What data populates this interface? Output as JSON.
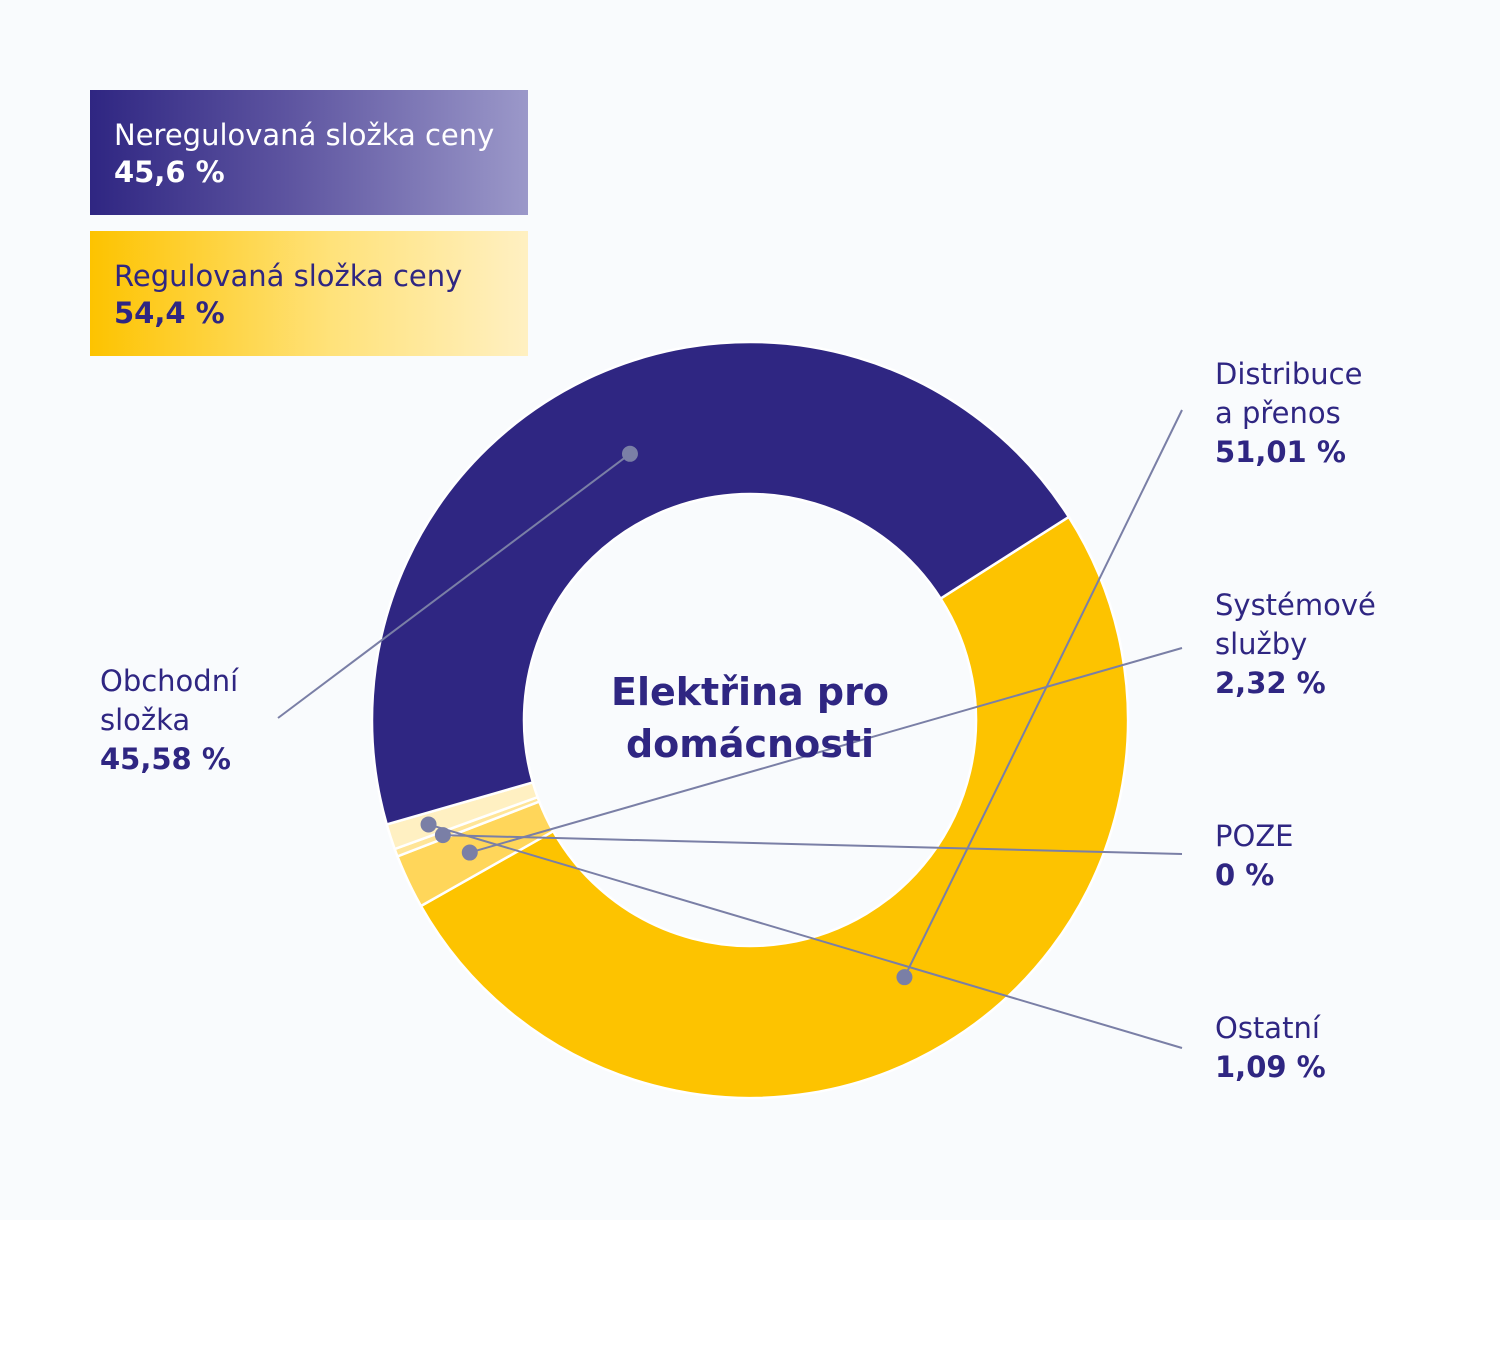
{
  "legend": {
    "unregulated": {
      "label": "Neregulovaná složka ceny",
      "value": "45,6 %",
      "color": "#2f2682"
    },
    "regulated": {
      "label": "Regulovaná složka ceny",
      "value": "54,4 %",
      "color": "#fdc300"
    }
  },
  "center_title": "Elektřina pro domácnosti",
  "callouts": {
    "distribuce": {
      "line1": "Distribuce",
      "line2": "a přenos",
      "value": "51,01 %"
    },
    "systemove": {
      "line1": "Systémové",
      "line2": "služby",
      "value": "2,32 %"
    },
    "poze": {
      "line1": "POZE",
      "value": "0 %"
    },
    "ostatni": {
      "line1": "Ostatní",
      "value": "1,09 %"
    },
    "obchodni": {
      "line1": "Obchodní",
      "line2": "složka",
      "value": "45,58 %"
    }
  },
  "chart_data": {
    "type": "pie",
    "variant": "donut",
    "title": "Elektřina pro domácnosti",
    "slices": [
      {
        "label": "Distribuce a přenos",
        "value": 51.01,
        "color": "#fdc300"
      },
      {
        "label": "Systémové služby",
        "value": 2.32,
        "color": "#ffd65a"
      },
      {
        "label": "POZE",
        "value": 0,
        "color": "#ffe598"
      },
      {
        "label": "Ostatní",
        "value": 1.09,
        "color": "#fff0c2"
      },
      {
        "label": "Obchodní složka",
        "value": 45.58,
        "color": "#2f2682"
      }
    ],
    "groups": [
      {
        "label": "Neregulovaná složka ceny",
        "value": 45.6
      },
      {
        "label": "Regulovaná složka ceny",
        "value": 54.4
      }
    ]
  }
}
